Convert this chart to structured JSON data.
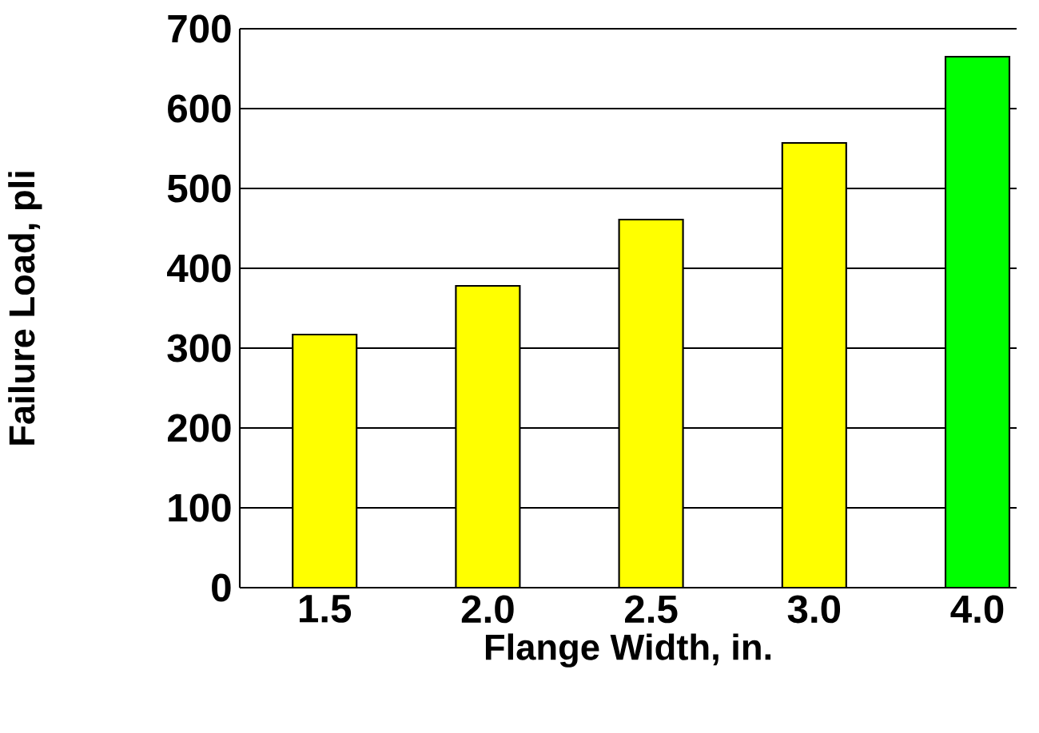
{
  "chart_data": {
    "type": "bar",
    "xlabel": "Flange Width, in.",
    "ylabel": "Failure Load, pli",
    "categories": [
      "1.5",
      "2.0",
      "2.5",
      "3.0",
      "4.0"
    ],
    "values": [
      317,
      378,
      461,
      557,
      665
    ],
    "colors": [
      "#ffff00",
      "#ffff00",
      "#ffff00",
      "#ffff00",
      "#00ff00"
    ],
    "ylim": [
      0,
      700
    ],
    "yticks": [
      0,
      100,
      200,
      300,
      400,
      500,
      600,
      700
    ],
    "grid": "y"
  }
}
